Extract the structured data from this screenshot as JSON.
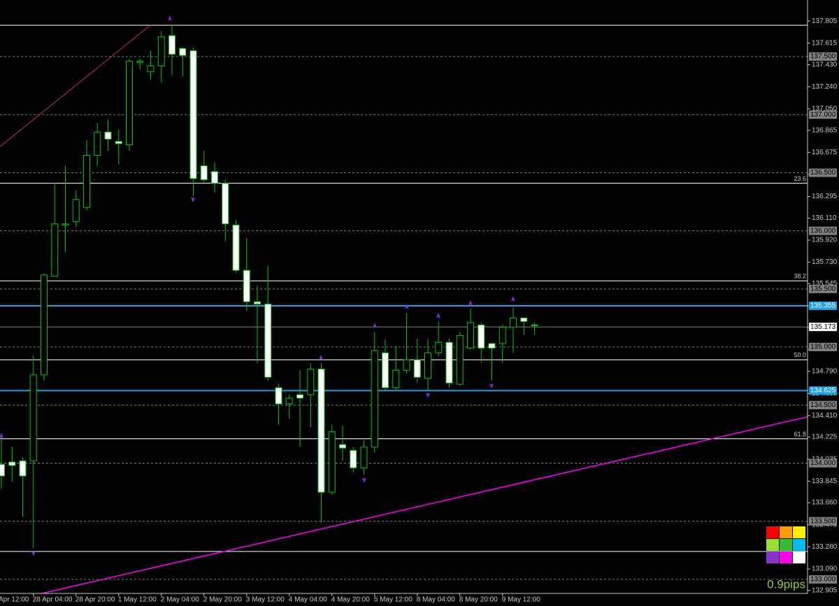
{
  "chart_data": {
    "type": "candlestick",
    "categories": [
      null,
      null,
      null,
      "28 Apr 04:00",
      null,
      null,
      null,
      "28 Apr 20:00",
      null,
      null,
      null,
      "1 May 12:00",
      null,
      null,
      null,
      "2 May 04:00",
      null,
      null,
      null,
      "2 May 20:00",
      null,
      null,
      null,
      "3 May 12:00",
      null,
      null,
      null,
      "4 May 04:00",
      null,
      null,
      null,
      "4 May 20:00",
      null,
      null,
      null,
      "5 May 12:00",
      null,
      null,
      null,
      "8 May 04:00",
      null,
      null,
      null,
      "8 May 20:00",
      null,
      null,
      null,
      "9 May 12:00",
      null,
      null,
      null
    ],
    "x_label_partial": "Apr 12:00",
    "open": [
      133.99,
      134.01,
      134.02,
      134.02,
      134.76,
      135.61,
      136.05,
      136.08,
      136.2,
      136.65,
      136.85,
      136.77,
      136.74,
      137.45,
      137.37,
      137.42,
      137.68,
      137.57,
      137.55,
      136.56,
      136.51,
      136.41,
      136.05,
      135.66,
      135.39,
      135.37,
      134.65,
      134.51,
      134.59,
      134.59,
      134.81,
      133.75,
      134.16,
      134.11,
      133.96,
      134.14,
      134.95,
      134.65,
      134.8,
      134.89,
      134.73,
      134.95,
      135.04,
      134.68,
      134.99,
      135.19,
      135.03,
      135.03,
      135.17,
      135.25,
      135.19
    ],
    "high": [
      134.26,
      134.14,
      134.05,
      134.93,
      135.63,
      136.41,
      136.56,
      136.35,
      136.78,
      136.93,
      136.96,
      136.87,
      137.48,
      137.48,
      137.55,
      137.72,
      137.77,
      137.58,
      137.58,
      136.69,
      136.59,
      136.44,
      136.09,
      135.94,
      135.53,
      135.7,
      134.68,
      134.59,
      134.8,
      134.86,
      134.86,
      134.33,
      134.32,
      134.14,
      134.2,
      135.13,
      135.07,
      135.01,
      135.29,
      135.07,
      135.07,
      135.22,
      135.07,
      135.13,
      135.33,
      135.21,
      135.03,
      135.19,
      135.34,
      135.26,
      135.21
    ],
    "low": [
      133.78,
      133.84,
      133.54,
      133.27,
      134.71,
      135.61,
      135.82,
      136.03,
      136.18,
      136.56,
      136.69,
      136.57,
      136.69,
      137.39,
      137.3,
      137.28,
      137.34,
      137.33,
      136.3,
      136.41,
      136.33,
      135.91,
      135.64,
      135.31,
      134.86,
      134.71,
      134.33,
      134.38,
      134.14,
      134.31,
      133.49,
      133.73,
      134.02,
      133.92,
      133.9,
      134.09,
      134.63,
      134.62,
      134.77,
      134.69,
      134.62,
      134.92,
      134.65,
      134.67,
      134.98,
      134.86,
      134.71,
      134.86,
      134.95,
      135.1,
      135.11
    ],
    "close": [
      133.89,
      133.98,
      133.89,
      134.76,
      135.62,
      136.06,
      136.06,
      136.27,
      136.65,
      136.85,
      136.79,
      136.75,
      137.46,
      137.46,
      137.42,
      137.67,
      137.52,
      137.51,
      136.45,
      136.44,
      136.41,
      136.06,
      135.66,
      135.39,
      135.37,
      134.74,
      134.51,
      134.56,
      134.56,
      134.81,
      133.75,
      134.27,
      134.13,
      133.96,
      134.14,
      134.97,
      134.65,
      134.8,
      134.89,
      134.74,
      134.95,
      135.04,
      134.69,
      135.1,
      135.21,
      134.99,
      134.99,
      135.17,
      135.25,
      135.22,
      135.19
    ],
    "up_color": "#000000",
    "down_color": "#ffffff",
    "wick_color": "#00c800",
    "ylim": [
      132.879,
      137.987
    ],
    "yticks": [
      137.805,
      137.615,
      {
        "value": 137.43,
        "label": "137.430"
      },
      {
        "value": 137.24,
        "label": "137.240"
      },
      {
        "value": 137.05,
        "label": "137.050"
      },
      136.865,
      136.675,
      136.485,
      136.295,
      {
        "value": 136.11,
        "label": "136.110"
      },
      {
        "value": 135.92,
        "label": "135.920"
      },
      {
        "value": 135.73,
        "label": "135.730"
      },
      135.545,
      135.355,
      {
        "value": 135.17,
        "label": "135.170"
      },
      {
        "value": 134.98,
        "label": "134.980"
      },
      {
        "value": 134.79,
        "label": "134.790"
      },
      {
        "value": 134.6,
        "label": "134.600"
      },
      {
        "value": 134.41,
        "label": "134.410"
      },
      134.225,
      134.035,
      133.845,
      {
        "value": 133.66,
        "label": "133.660"
      },
      {
        "value": 133.47,
        "label": "133.470"
      },
      {
        "value": 133.28,
        "label": "133.280"
      },
      {
        "value": 133.09,
        "label": "133.090"
      },
      132.905
    ],
    "round_levels": [
      {
        "value": 137.5,
        "label": "137.500"
      },
      {
        "value": 137,
        "label": "137.000"
      },
      {
        "value": 136.5,
        "label": "136.500"
      },
      {
        "value": 136,
        "label": "136.000"
      },
      {
        "value": 135.5,
        "label": "135.500"
      },
      {
        "value": 135,
        "label": "135.000"
      },
      {
        "value": 134.5,
        "label": "134.500"
      },
      {
        "value": 134,
        "label": "134.000"
      },
      {
        "value": 133.5,
        "label": "133.500"
      },
      {
        "value": 133,
        "label": "133.000"
      }
    ],
    "fib_levels": [
      {
        "value": 137.77
      },
      {
        "value": 136.41,
        "label": "23.6"
      },
      {
        "value": 135.57,
        "label": "38.2"
      },
      {
        "value": 134.89,
        "label": "50.0"
      },
      {
        "value": 134.21,
        "label": "61.8"
      },
      {
        "value": 133.24
      }
    ],
    "zone_levels": [
      {
        "value": 135.355,
        "label": "135.355"
      },
      {
        "value": 134.625,
        "label": "134.625"
      }
    ],
    "current_price": {
      "value": 135.173,
      "label": "135.173"
    },
    "spread_label": "0.9pips"
  }
}
